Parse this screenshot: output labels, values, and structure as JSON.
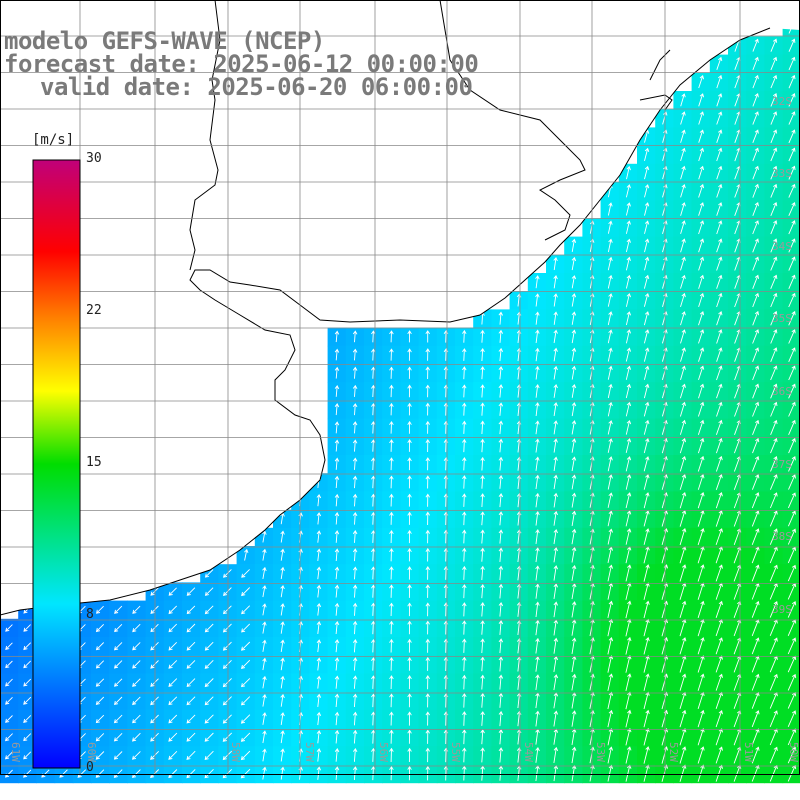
{
  "title": {
    "line1": "modelo GEFS-WAVE (NCEP)",
    "line2": "forecast date: 2025-06-12 00:00:00",
    "line3": "valid date: 2025-06-20 06:00:00"
  },
  "colorbar": {
    "unit": "[m/s]",
    "ticks": [
      "30",
      "22",
      "15",
      "8",
      "0"
    ],
    "range": [
      0,
      30
    ],
    "colors": [
      "#0000ff",
      "#00e6ff",
      "#00dd00",
      "#ffff00",
      "#ff8000",
      "#ff0000",
      "#c0007a"
    ]
  },
  "map": {
    "grid_color": "#888888",
    "coast_color": "#000000",
    "land_color": "#ffffff",
    "arrow_color": "#ffffff",
    "lon_labels": [
      "61W",
      "60W",
      "58W",
      "57W",
      "56W",
      "55W",
      "54W",
      "53W",
      "52W",
      "51W",
      "50W"
    ],
    "lat_labels": [
      "32S",
      "33S",
      "34S",
      "35S",
      "36S",
      "37S",
      "38S",
      "39S"
    ]
  }
}
